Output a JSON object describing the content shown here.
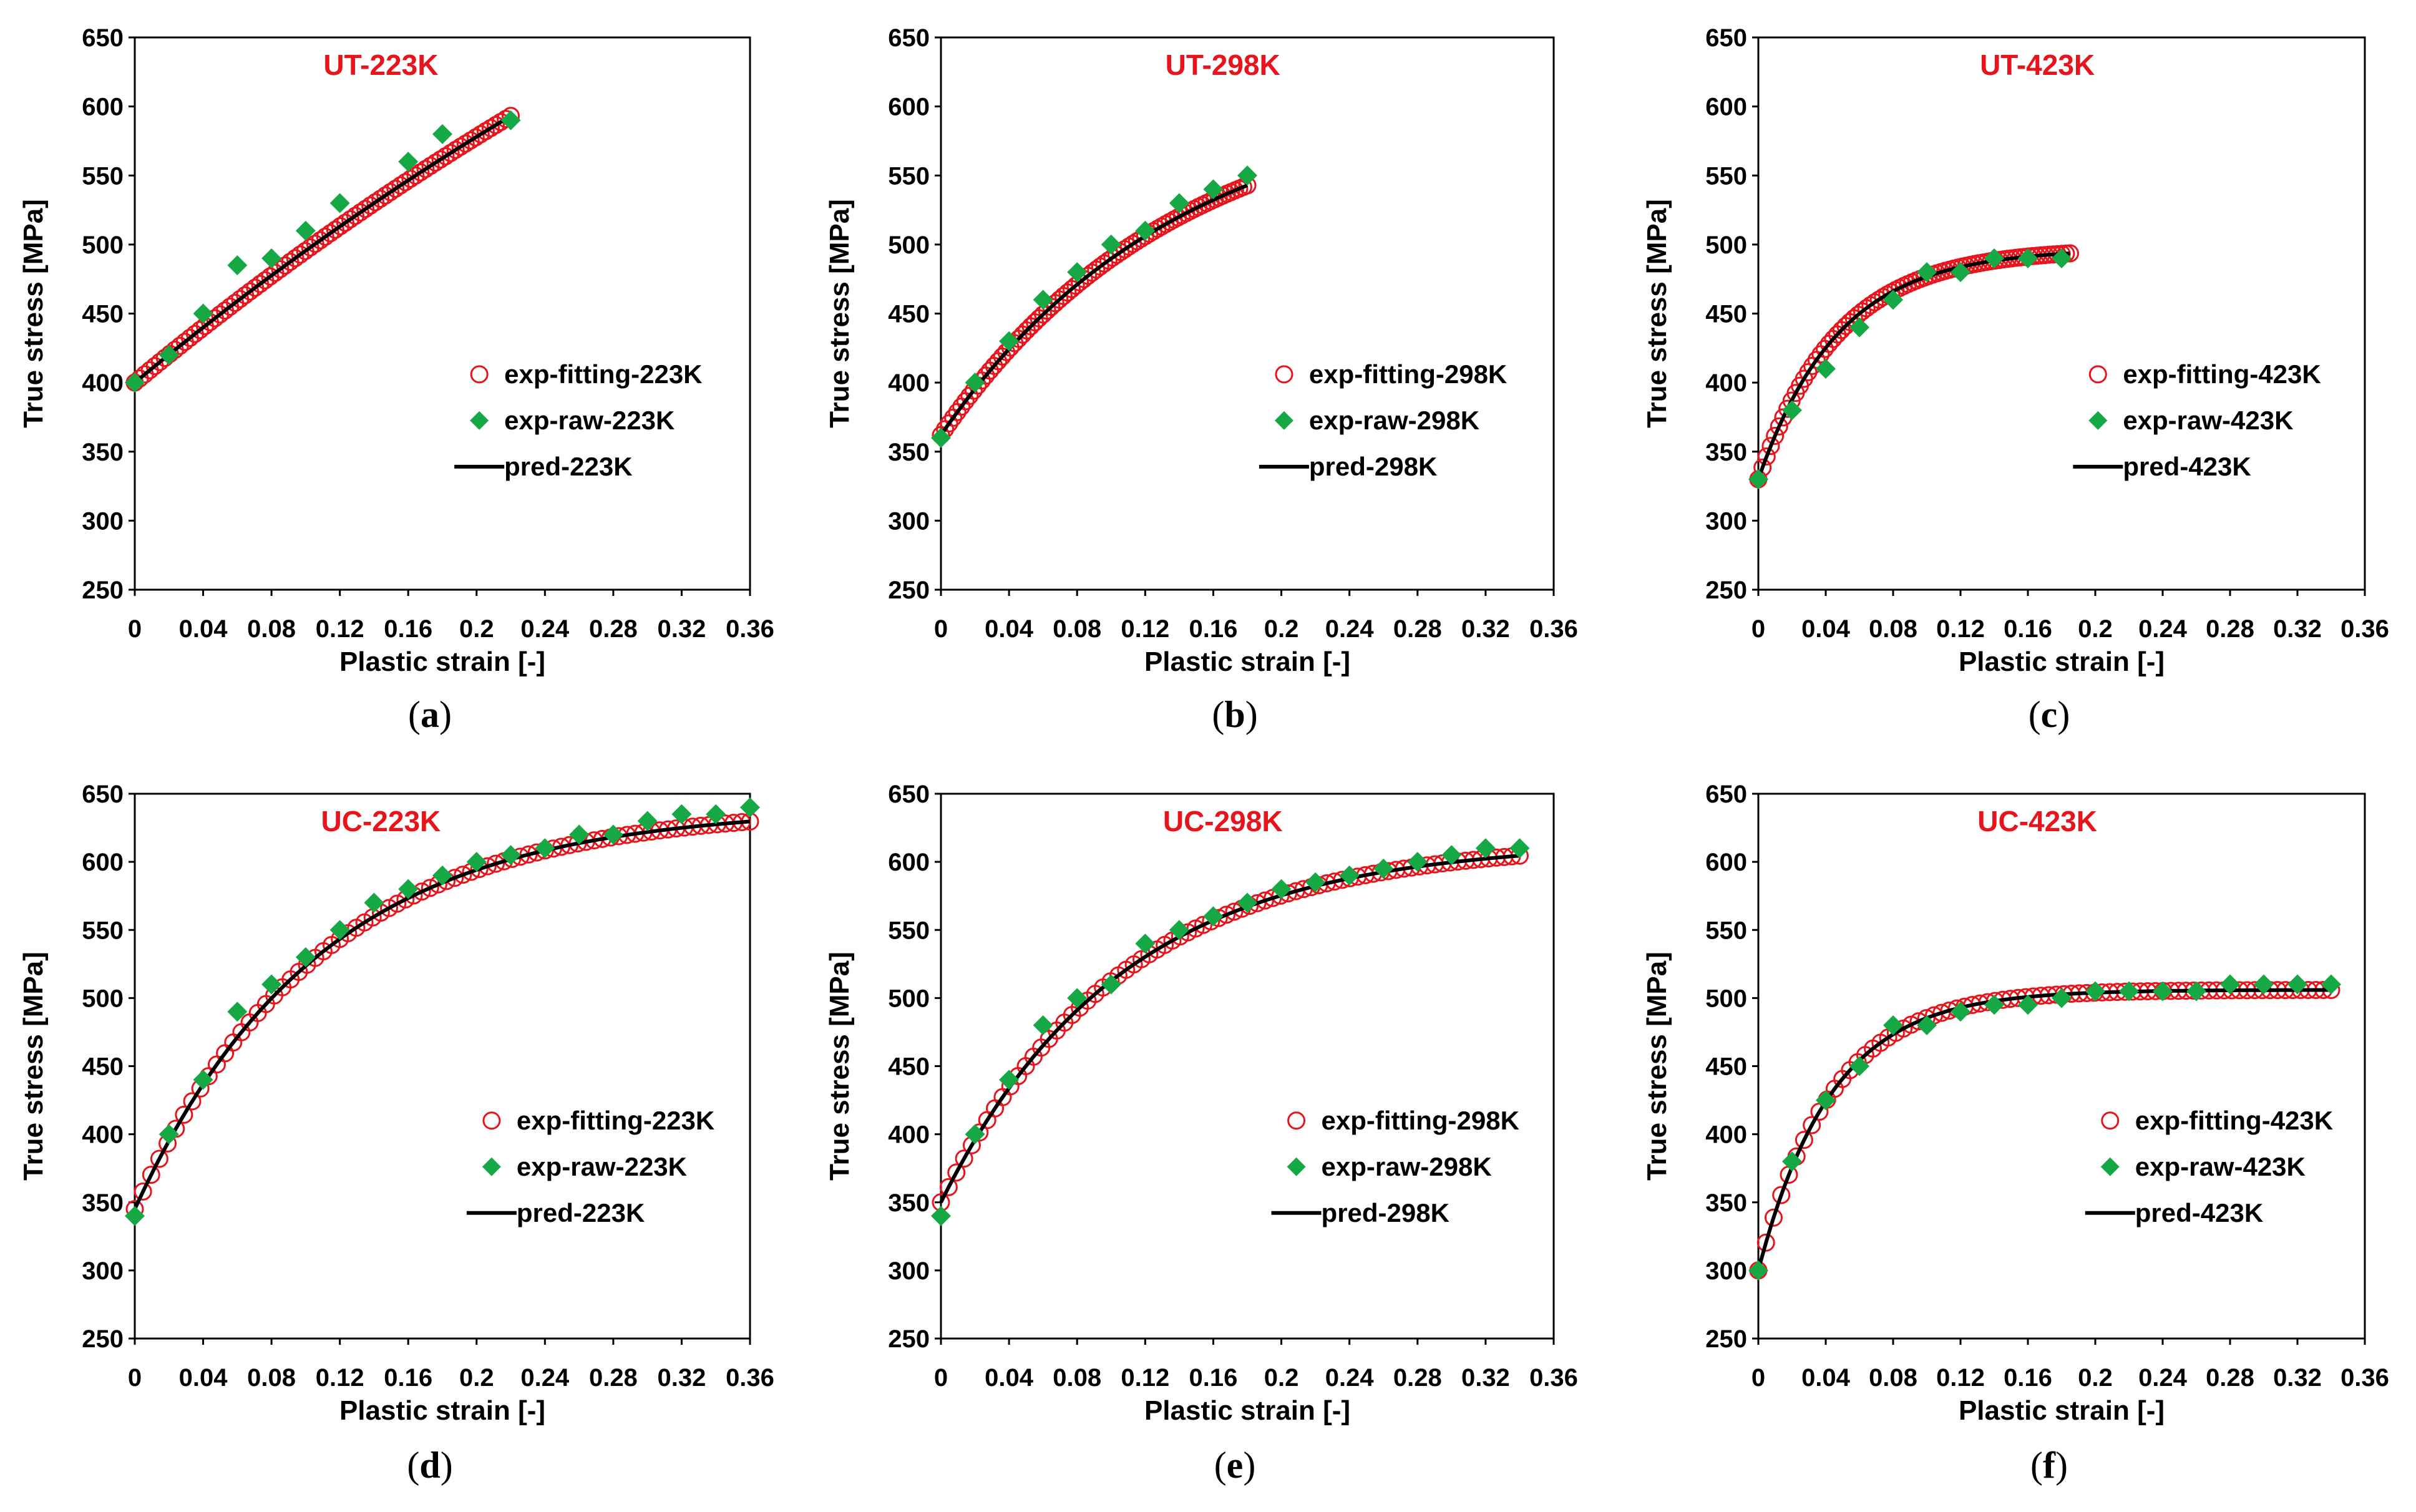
{
  "figure": {
    "layout": "2x3 grid of stress-strain panels"
  },
  "colors": {
    "fit": "#e8141c",
    "raw": "#17a846",
    "pred": "#000000",
    "title": "#e8141c"
  },
  "chart_data": [
    {
      "id": "a",
      "type": "scatter",
      "title": "UT-223K",
      "caption": "a",
      "xlabel": "Plastic strain [-]",
      "ylabel": "True stress [MPa]",
      "xlim": [
        0,
        0.36
      ],
      "ylim": [
        250,
        650
      ],
      "xticks": [
        "0",
        "0.04",
        "0.08",
        "0.12",
        "0.16",
        "0.2",
        "0.24",
        "0.28",
        "0.32",
        "0.36"
      ],
      "yticks": [
        "250",
        "300",
        "350",
        "400",
        "450",
        "500",
        "550",
        "600",
        "650"
      ],
      "curve": {
        "s0": 400,
        "sinf": 1099,
        "k": 1.47
      },
      "xmax": 0.22,
      "series": [
        {
          "name": "exp-fitting-223K",
          "marker": "open-circle"
        },
        {
          "name": "exp-raw-223K",
          "marker": "diamond",
          "points": [
            [
              0,
              400
            ],
            [
              0.02,
              420
            ],
            [
              0.04,
              450
            ],
            [
              0.06,
              485
            ],
            [
              0.08,
              490
            ],
            [
              0.1,
              510
            ],
            [
              0.12,
              530
            ],
            [
              0.16,
              560
            ],
            [
              0.18,
              580
            ],
            [
              0.22,
              590
            ]
          ]
        },
        {
          "name": "pred-223K",
          "marker": "line"
        }
      ],
      "legend_position": "center-right"
    },
    {
      "id": "b",
      "type": "scatter",
      "title": "UT-298K",
      "caption": "b",
      "xlabel": "Plastic strain [-]",
      "ylabel": "True stress [MPa]",
      "xlim": [
        0,
        0.36
      ],
      "ylim": [
        250,
        650
      ],
      "xticks": [
        "0",
        "0.04",
        "0.08",
        "0.12",
        "0.16",
        "0.2",
        "0.24",
        "0.28",
        "0.32",
        "0.36"
      ],
      "yticks": [
        "250",
        "300",
        "350",
        "400",
        "450",
        "500",
        "550",
        "600",
        "650"
      ],
      "curve": {
        "s0": 362,
        "sinf": 611,
        "k": 7.2
      },
      "xmax": 0.18,
      "series": [
        {
          "name": "exp-fitting-298K",
          "marker": "open-circle"
        },
        {
          "name": "exp-raw-298K",
          "marker": "diamond",
          "points": [
            [
              0,
              360
            ],
            [
              0.02,
              400
            ],
            [
              0.04,
              430
            ],
            [
              0.06,
              460
            ],
            [
              0.08,
              480
            ],
            [
              0.1,
              500
            ],
            [
              0.12,
              510
            ],
            [
              0.14,
              530
            ],
            [
              0.16,
              540
            ],
            [
              0.18,
              550
            ]
          ]
        },
        {
          "name": "pred-298K",
          "marker": "line"
        }
      ],
      "legend_position": "center-right"
    },
    {
      "id": "c",
      "type": "scatter",
      "title": "UT-423K",
      "caption": "c",
      "xlabel": "Plastic strain [-]",
      "ylabel": "True stress [MPa]",
      "xlim": [
        0,
        0.36
      ],
      "ylim": [
        250,
        650
      ],
      "xticks": [
        "0",
        "0.04",
        "0.08",
        "0.12",
        "0.16",
        "0.2",
        "0.24",
        "0.28",
        "0.32",
        "0.36"
      ],
      "yticks": [
        "250",
        "300",
        "350",
        "400",
        "450",
        "500",
        "550",
        "600",
        "650"
      ],
      "curve": {
        "s0": 330,
        "sinf": 497,
        "k": 21.1
      },
      "xmax": 0.185,
      "series": [
        {
          "name": "exp-fitting-423K",
          "marker": "open-circle"
        },
        {
          "name": "exp-raw-423K",
          "marker": "diamond",
          "points": [
            [
              0,
              330
            ],
            [
              0.02,
              380
            ],
            [
              0.04,
              410
            ],
            [
              0.06,
              440
            ],
            [
              0.08,
              460
            ],
            [
              0.1,
              480
            ],
            [
              0.12,
              480
            ],
            [
              0.14,
              490
            ],
            [
              0.16,
              490
            ],
            [
              0.18,
              490
            ]
          ]
        },
        {
          "name": "pred-423K",
          "marker": "line"
        }
      ],
      "legend_position": "center-right"
    },
    {
      "id": "d",
      "type": "scatter",
      "title": "UC-223K",
      "caption": "d",
      "xlabel": "Plastic strain [-]",
      "ylabel": "True stress [MPa]",
      "xlim": [
        0,
        0.36
      ],
      "ylim": [
        250,
        650
      ],
      "xticks": [
        "0",
        "0.04",
        "0.08",
        "0.12",
        "0.16",
        "0.2",
        "0.24",
        "0.28",
        "0.32",
        "0.36"
      ],
      "yticks": [
        "250",
        "300",
        "350",
        "400",
        "450",
        "500",
        "550",
        "600",
        "650"
      ],
      "curve": {
        "s0": 345,
        "sinf": 640,
        "k": 9.3
      },
      "xmax": 0.36,
      "series": [
        {
          "name": "exp-fitting-223K",
          "marker": "open-circle"
        },
        {
          "name": "exp-raw-223K",
          "marker": "diamond",
          "points": [
            [
              0,
              340
            ],
            [
              0.02,
              400
            ],
            [
              0.04,
              440
            ],
            [
              0.06,
              490
            ],
            [
              0.08,
              510
            ],
            [
              0.1,
              530
            ],
            [
              0.12,
              550
            ],
            [
              0.14,
              570
            ],
            [
              0.16,
              580
            ],
            [
              0.18,
              590
            ],
            [
              0.2,
              600
            ],
            [
              0.22,
              605
            ],
            [
              0.24,
              610
            ],
            [
              0.26,
              620
            ],
            [
              0.28,
              620
            ],
            [
              0.3,
              630
            ],
            [
              0.32,
              635
            ],
            [
              0.34,
              635
            ],
            [
              0.36,
              640
            ]
          ]
        },
        {
          "name": "pred-223K",
          "marker": "line"
        }
      ],
      "legend_position": "lower-right"
    },
    {
      "id": "e",
      "type": "scatter",
      "title": "UC-298K",
      "caption": "e",
      "xlabel": "Plastic strain [-]",
      "ylabel": "True stress [MPa]",
      "xlim": [
        0,
        0.36
      ],
      "ylim": [
        250,
        650
      ],
      "xticks": [
        "0",
        "0.04",
        "0.08",
        "0.12",
        "0.16",
        "0.2",
        "0.24",
        "0.28",
        "0.32",
        "0.36"
      ],
      "yticks": [
        "250",
        "300",
        "350",
        "400",
        "450",
        "500",
        "550",
        "600",
        "650"
      ],
      "curve": {
        "s0": 350,
        "sinf": 615,
        "k": 9.5
      },
      "xmax": 0.34,
      "series": [
        {
          "name": "exp-fitting-298K",
          "marker": "open-circle"
        },
        {
          "name": "exp-raw-298K",
          "marker": "diamond",
          "points": [
            [
              0,
              340
            ],
            [
              0.02,
              400
            ],
            [
              0.04,
              440
            ],
            [
              0.06,
              480
            ],
            [
              0.08,
              500
            ],
            [
              0.1,
              510
            ],
            [
              0.12,
              540
            ],
            [
              0.14,
              550
            ],
            [
              0.16,
              560
            ],
            [
              0.18,
              570
            ],
            [
              0.2,
              580
            ],
            [
              0.22,
              585
            ],
            [
              0.24,
              590
            ],
            [
              0.26,
              595
            ],
            [
              0.28,
              600
            ],
            [
              0.3,
              605
            ],
            [
              0.32,
              610
            ],
            [
              0.34,
              610
            ]
          ]
        },
        {
          "name": "pred-298K",
          "marker": "line"
        }
      ],
      "legend_position": "lower-right"
    },
    {
      "id": "f",
      "type": "scatter",
      "title": "UC-423K",
      "caption": "f",
      "xlabel": "Plastic strain [-]",
      "ylabel": "True stress [MPa]",
      "xlim": [
        0,
        0.36
      ],
      "ylim": [
        250,
        650
      ],
      "xticks": [
        "0",
        "0.04",
        "0.08",
        "0.12",
        "0.16",
        "0.2",
        "0.24",
        "0.28",
        "0.32",
        "0.36"
      ],
      "yticks": [
        "250",
        "300",
        "350",
        "400",
        "450",
        "500",
        "550",
        "600",
        "650"
      ],
      "curve": {
        "s0": 300,
        "sinf": 506,
        "k": 23
      },
      "xmax": 0.34,
      "series": [
        {
          "name": "exp-fitting-423K",
          "marker": "open-circle"
        },
        {
          "name": "exp-raw-423K",
          "marker": "diamond",
          "points": [
            [
              0,
              300
            ],
            [
              0.02,
              380
            ],
            [
              0.04,
              425
            ],
            [
              0.06,
              450
            ],
            [
              0.08,
              480
            ],
            [
              0.1,
              480
            ],
            [
              0.12,
              490
            ],
            [
              0.14,
              495
            ],
            [
              0.16,
              495
            ],
            [
              0.18,
              500
            ],
            [
              0.2,
              505
            ],
            [
              0.22,
              505
            ],
            [
              0.24,
              505
            ],
            [
              0.26,
              505
            ],
            [
              0.28,
              510
            ],
            [
              0.3,
              510
            ],
            [
              0.32,
              510
            ],
            [
              0.34,
              510
            ]
          ]
        },
        {
          "name": "pred-423K",
          "marker": "line"
        }
      ],
      "legend_position": "lower-right"
    }
  ]
}
